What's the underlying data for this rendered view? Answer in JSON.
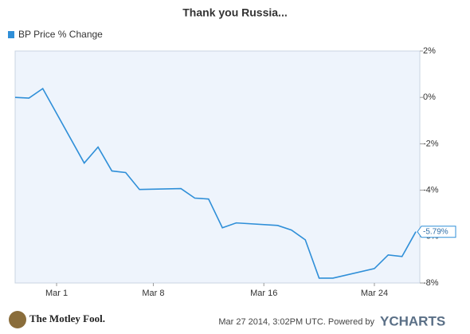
{
  "chart_data": {
    "type": "line",
    "title": "Thank you Russia...",
    "x": [
      -2,
      -1,
      0,
      3,
      4,
      5,
      6,
      7,
      10,
      11,
      12,
      13,
      14,
      17,
      18,
      19,
      20,
      21,
      24,
      25,
      26,
      27
    ],
    "series": [
      {
        "name": "BP Price  % Change",
        "color": "#2f8fd8",
        "values": [
          0,
          -0.03,
          0.38,
          -2.83,
          -2.14,
          -3.17,
          -3.24,
          -3.97,
          -3.93,
          -4.34,
          -4.38,
          -5.62,
          -5.41,
          -5.52,
          -5.72,
          -6.14,
          -7.79,
          -7.79,
          -7.38,
          -6.79,
          -6.86,
          -5.79
        ],
        "value_labels": [
          null,
          null,
          null,
          null,
          null,
          null,
          null,
          null,
          null,
          null,
          null,
          null,
          null,
          null,
          null,
          null,
          null,
          null,
          null,
          null,
          null,
          "-5.79%"
        ]
      }
    ],
    "xlim": [
      -2,
      27
    ],
    "xticks": [
      {
        "value": 1,
        "label": "Mar 1"
      },
      {
        "value": 8,
        "label": "Mar 8"
      },
      {
        "value": 16,
        "label": "Mar 16"
      },
      {
        "value": 24,
        "label": "Mar 24"
      }
    ],
    "ylim": [
      -8,
      2
    ],
    "yticks": [
      {
        "value": 2,
        "label": "2%"
      },
      {
        "value": 0,
        "label": "0%"
      },
      {
        "value": -2,
        "label": "-2%"
      },
      {
        "value": -4,
        "label": "-4%"
      },
      {
        "value": -6,
        "label": "-6%"
      },
      {
        "value": -8,
        "label": "-8%"
      }
    ],
    "grid": false,
    "footer": {
      "logo": "The Motley Fool.",
      "timestamp": "Mar 27 2014, 3:02PM UTC.  Powered by",
      "brand": "YCHARTS"
    }
  }
}
